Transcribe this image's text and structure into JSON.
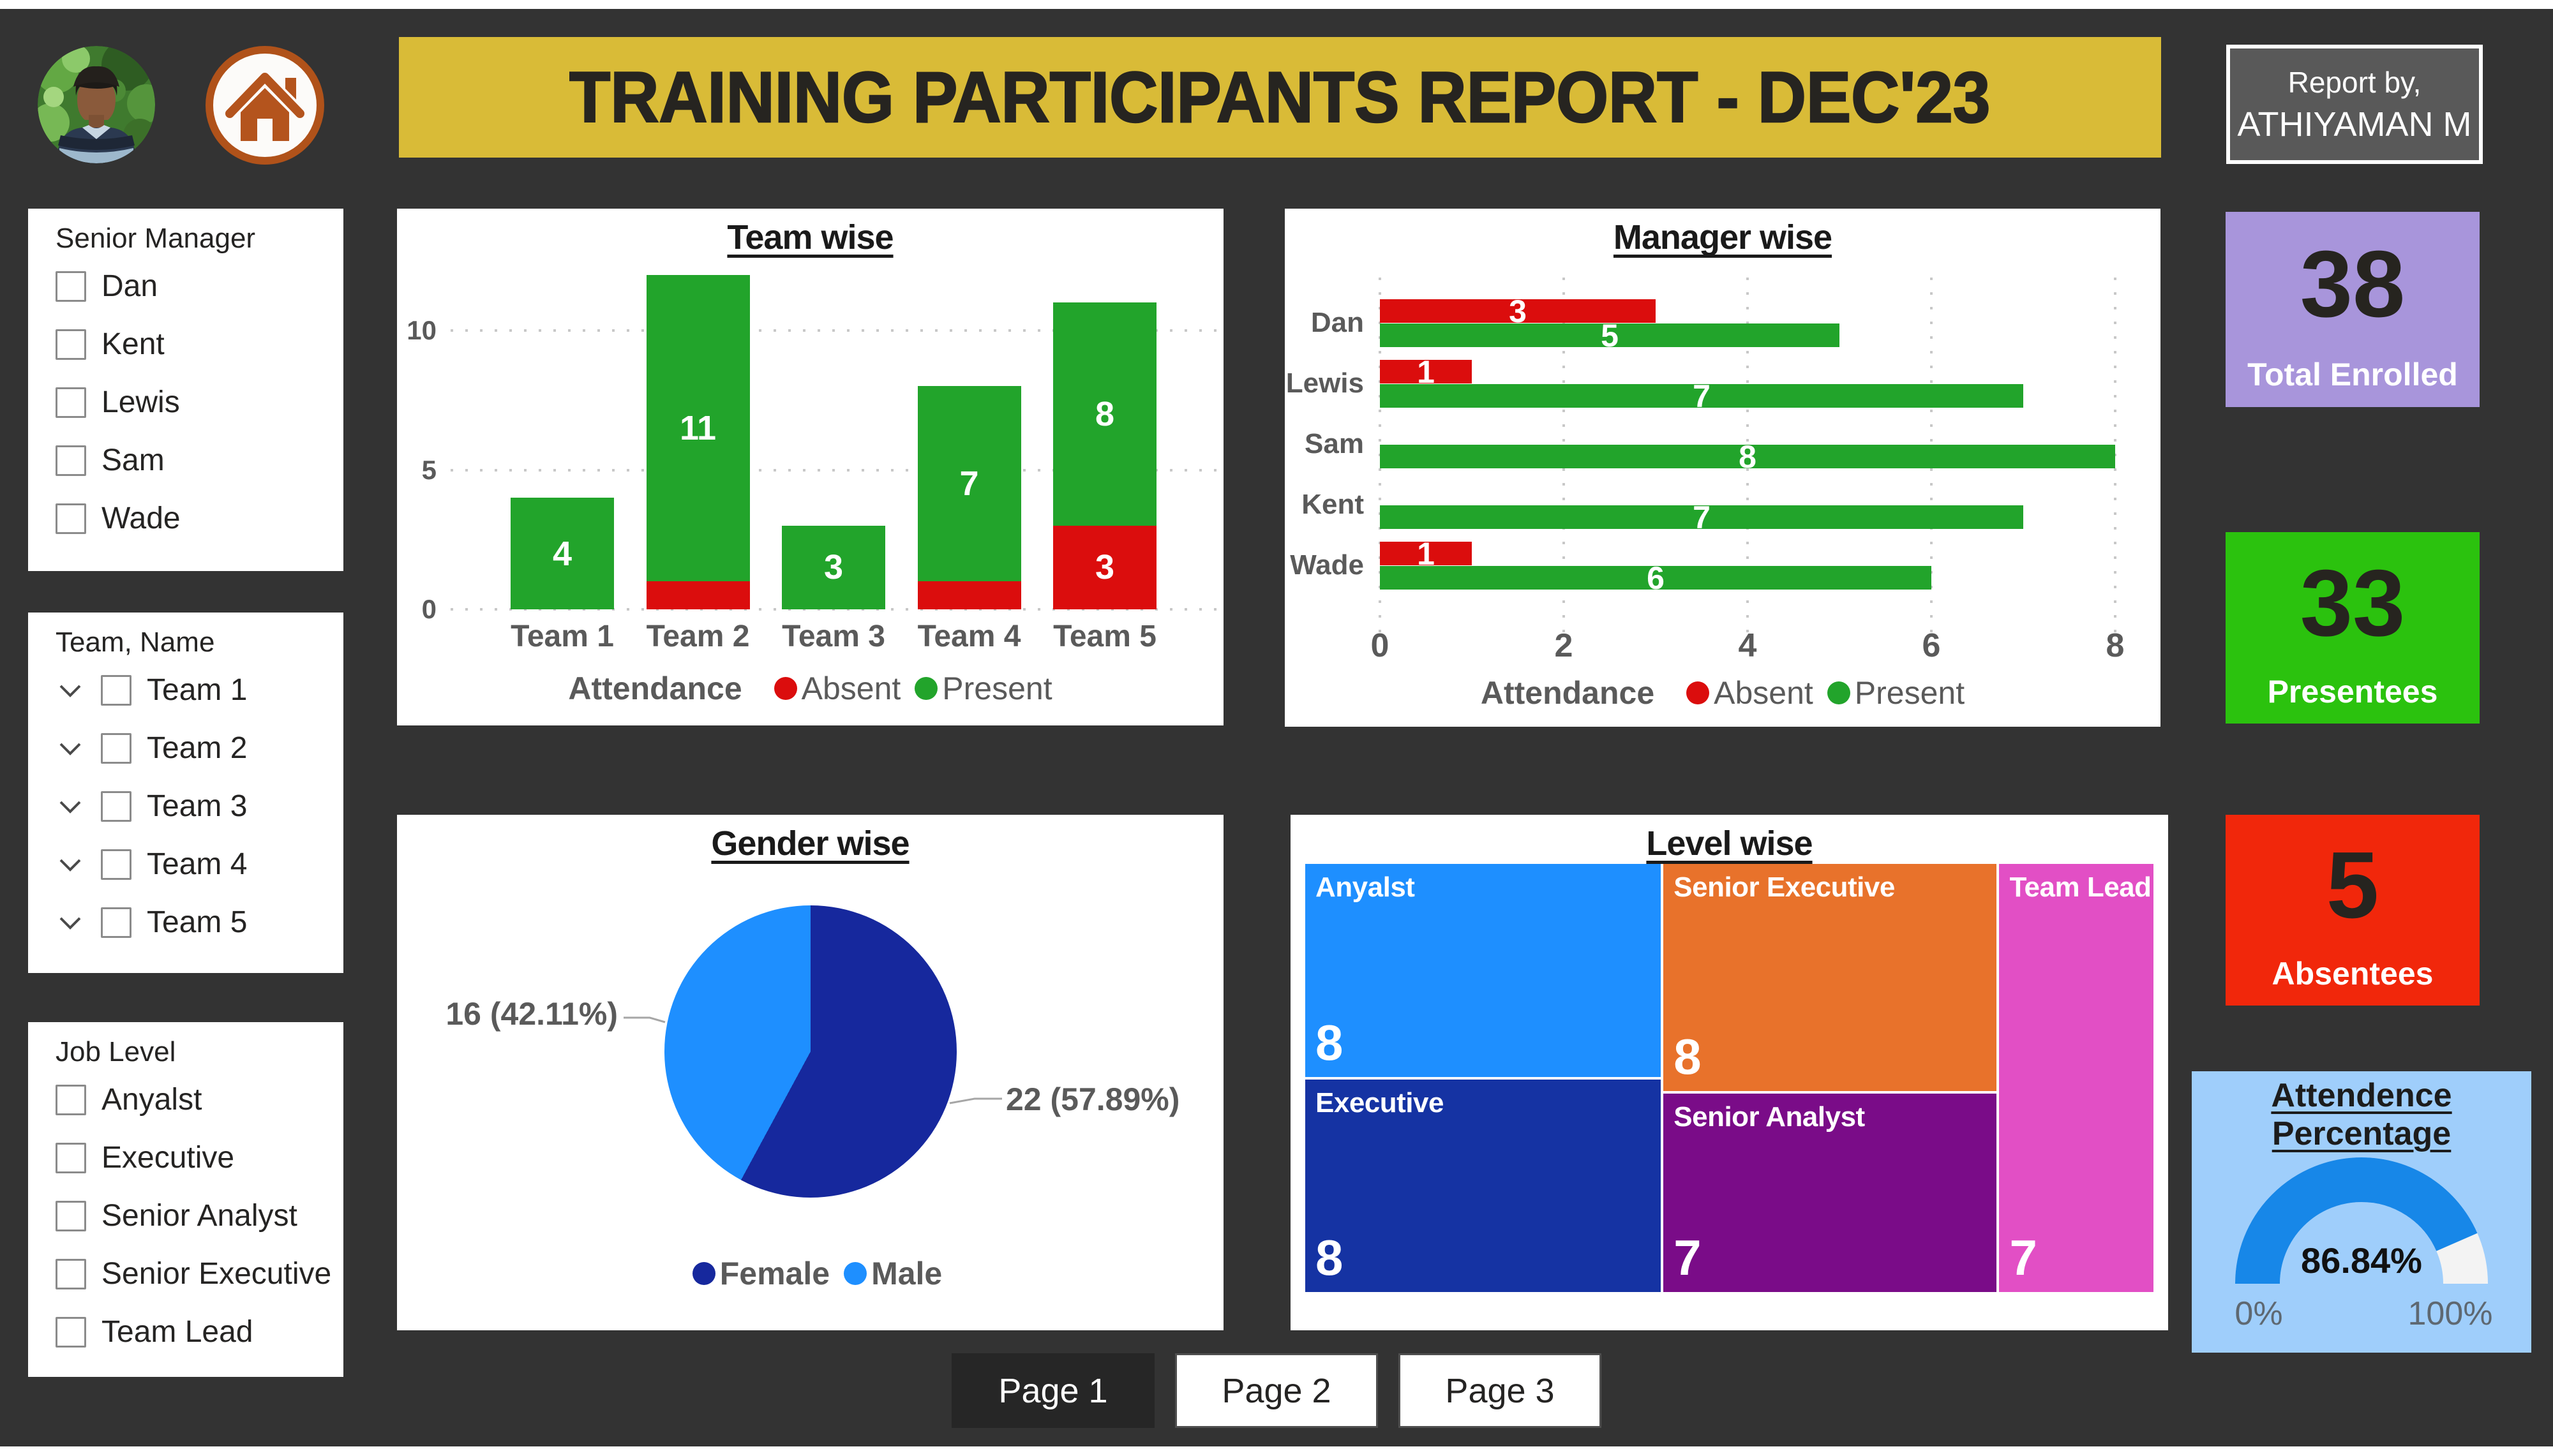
{
  "header": {
    "title": "TRAINING PARTICIPANTS REPORT - DEC'23",
    "report_by_line1": "Report by,",
    "report_by_line2": "ATHIYAMAN M",
    "banner_color": "#d9bb37"
  },
  "slicers": [
    {
      "title": "Senior Manager",
      "expandable": false,
      "items": [
        "Dan",
        "Kent",
        "Lewis",
        "Sam",
        "Wade"
      ]
    },
    {
      "title": "Team, Name",
      "expandable": true,
      "items": [
        "Team 1",
        "Team 2",
        "Team 3",
        "Team 4",
        "Team 5"
      ]
    },
    {
      "title": "Job Level",
      "expandable": false,
      "items": [
        "Anyalst",
        "Executive",
        "Senior Analyst",
        "Senior Executive",
        "Team Lead"
      ]
    }
  ],
  "kpi_cards": [
    {
      "value": "38",
      "label": "Total Enrolled",
      "color": "#a895db"
    },
    {
      "value": "33",
      "label": "Presentees",
      "color": "#2bc20e"
    },
    {
      "value": "5",
      "label": "Absentees",
      "color": "#f1270b"
    }
  ],
  "gauge_card": {
    "title_line1": "Attendence",
    "title_line2": "Percentage",
    "value": 86.84,
    "value_label": "86.84%",
    "min": 0,
    "max": 100,
    "min_label": "0%",
    "max_label": "100%",
    "bg_color": "#9fcefb",
    "arc_color": "#1787e8",
    "track_color": "#f3f3f3"
  },
  "page_nav": [
    {
      "label": "Page 1",
      "active": true
    },
    {
      "label": "Page 2",
      "active": false
    },
    {
      "label": "Page 3",
      "active": false
    }
  ],
  "chart_data": [
    {
      "type": "bar",
      "stacked": true,
      "title": "Team wise",
      "categories": [
        "Team 1",
        "Team 2",
        "Team 3",
        "Team 4",
        "Team 5"
      ],
      "series": [
        {
          "name": "Absent",
          "color": "#db0d0d",
          "values": [
            0,
            1,
            0,
            1,
            3
          ]
        },
        {
          "name": "Present",
          "color": "#22a42b",
          "values": [
            4,
            11,
            3,
            7,
            8
          ]
        }
      ],
      "legend_title": "Attendance",
      "yticks": [
        0,
        5,
        10
      ],
      "ylim": [
        0,
        12.4
      ],
      "grid": "dotted-horizontal",
      "legend_position": "bottom"
    },
    {
      "type": "bar",
      "orientation": "horizontal",
      "title": "Manager wise",
      "categories": [
        "Dan",
        "Lewis",
        "Sam",
        "Kent",
        "Wade"
      ],
      "series": [
        {
          "name": "Absent",
          "color": "#db0d0d",
          "values": [
            3,
            1,
            0,
            0,
            1
          ]
        },
        {
          "name": "Present",
          "color": "#22a42b",
          "values": [
            5,
            7,
            8,
            7,
            6
          ]
        }
      ],
      "legend_title": "Attendance",
      "xticks": [
        0,
        2,
        4,
        6,
        8
      ],
      "xlim": [
        0,
        8.6
      ],
      "grid": "dotted-vertical",
      "legend_position": "bottom"
    },
    {
      "type": "pie",
      "title": "Gender wise",
      "slices": [
        {
          "label": "Female",
          "value": 22,
          "color": "#16289d",
          "callout": "22 (57.89%)"
        },
        {
          "label": "Male",
          "value": 16,
          "color": "#1e8fff",
          "callout": "16 (42.11%)"
        }
      ],
      "start_angle_deg": 0,
      "legend_position": "bottom"
    },
    {
      "type": "treemap",
      "title": "Level wise",
      "total": 38,
      "tiles": [
        {
          "label": "Anyalst",
          "value": 8,
          "color": "#1e8fff"
        },
        {
          "label": "Executive",
          "value": 8,
          "color": "#1533a3"
        },
        {
          "label": "Senior Executive",
          "value": 8,
          "color": "#e8722b"
        },
        {
          "label": "Senior Analyst",
          "value": 7,
          "color": "#7a0c88"
        },
        {
          "label": "Team Lead",
          "value": 7,
          "color": "#e24fc5"
        }
      ],
      "columns": [
        [
          0,
          1
        ],
        [
          2,
          3
        ],
        [
          4
        ]
      ]
    },
    {
      "type": "gauge",
      "title": "Attendence Percentage",
      "value": 86.84,
      "min": 0,
      "max": 100,
      "value_label": "86.84%",
      "min_label": "0%",
      "max_label": "100%"
    }
  ]
}
